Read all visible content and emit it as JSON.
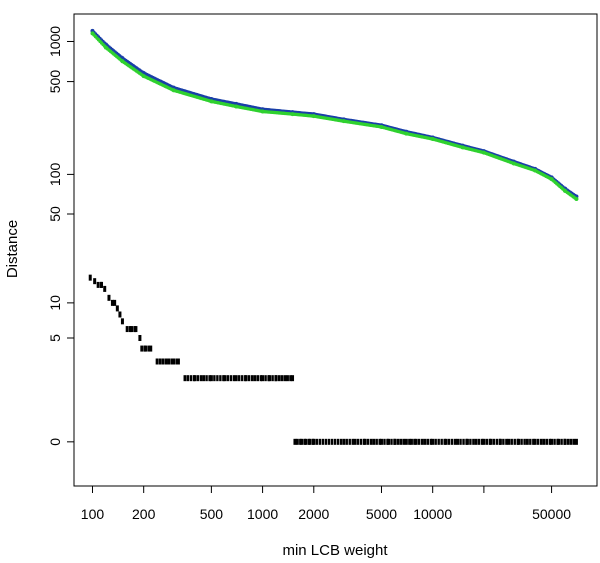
{
  "chart_data": {
    "type": "scatter",
    "title": "",
    "xlabel": "min LCB weight",
    "ylabel": "Distance",
    "x_scale": "log",
    "y_scale": "log1p",
    "xlim": [
      80,
      90000
    ],
    "ylim": [
      -0.5,
      1500
    ],
    "grid": false,
    "legend": "none",
    "x_ticks": [
      {
        "value": 100,
        "label": "100"
      },
      {
        "value": 200,
        "label": "200"
      },
      {
        "value": 500,
        "label": "500"
      },
      {
        "value": 1000,
        "label": "1000"
      },
      {
        "value": 2000,
        "label": "2000"
      },
      {
        "value": 5000,
        "label": "5000"
      },
      {
        "value": 10000,
        "label": "10000"
      },
      {
        "value": 20000,
        "label": ""
      },
      {
        "value": 50000,
        "label": "50000"
      }
    ],
    "y_ticks": [
      {
        "value": 0,
        "label": "0"
      },
      {
        "value": 5,
        "label": "5"
      },
      {
        "value": 10,
        "label": "10"
      },
      {
        "value": 50,
        "label": "50"
      },
      {
        "value": 100,
        "label": "100"
      },
      {
        "value": 500,
        "label": "500"
      },
      {
        "value": 1000,
        "label": "1000"
      }
    ],
    "series": [
      {
        "color": "#1a3fa8",
        "marker": "dot",
        "x": [
          100,
          120,
          150,
          200,
          300,
          500,
          700,
          1000,
          1500,
          2000,
          3000,
          5000,
          7000,
          10000,
          15000,
          20000,
          30000,
          40000,
          50000,
          60000,
          70000
        ],
        "y": [
          1200,
          950,
          750,
          580,
          450,
          370,
          340,
          310,
          295,
          285,
          260,
          235,
          210,
          190,
          165,
          150,
          125,
          110,
          95,
          78,
          68
        ]
      },
      {
        "color": "#2fd12f",
        "marker": "dot",
        "x": [
          100,
          120,
          150,
          200,
          300,
          500,
          700,
          1000,
          1500,
          2000,
          3000,
          5000,
          7000,
          10000,
          15000,
          20000,
          30000,
          40000,
          50000,
          60000,
          70000
        ],
        "y": [
          1150,
          900,
          710,
          550,
          430,
          355,
          325,
          298,
          285,
          275,
          252,
          228,
          203,
          185,
          160,
          146,
          121,
          107,
          92,
          75,
          65
        ]
      },
      {
        "color": "#000000",
        "marker": "tick",
        "x": [
          97,
          103,
          108,
          113,
          118,
          125,
          131,
          135,
          140,
          145,
          150,
          160,
          170,
          180,
          190,
          195,
          205,
          220,
          240,
          260,
          280,
          300,
          320,
          350,
          400,
          450,
          500,
          600,
          700,
          800,
          900,
          1000,
          1100,
          1200,
          1300,
          1400,
          1500,
          1550,
          1600,
          1700,
          1800,
          1900,
          2000,
          3000,
          3500,
          4000,
          4500,
          5000,
          5500,
          6000,
          6500,
          7000,
          7500,
          8000,
          9000,
          10000,
          12000,
          14000,
          16000,
          18000,
          20000,
          22000,
          25000,
          28000,
          32000,
          36000,
          40000,
          45000,
          50000,
          55000,
          60000,
          65000,
          70000
        ],
        "y": [
          16,
          15,
          14,
          14,
          13,
          11,
          10,
          10,
          9,
          8,
          7,
          6,
          6,
          6,
          5,
          4,
          4,
          4,
          3,
          3,
          3,
          3,
          3,
          2,
          2,
          2,
          2,
          2,
          2,
          2,
          2,
          2,
          2,
          2,
          2,
          2,
          2,
          0,
          0,
          0,
          0,
          0,
          0,
          0,
          0,
          0,
          0,
          0,
          0,
          0,
          0,
          0,
          0,
          0,
          0,
          0,
          0,
          0,
          0,
          0,
          0,
          0,
          0,
          0,
          0,
          0,
          0,
          0,
          0,
          0,
          0,
          0,
          0
        ]
      }
    ]
  }
}
